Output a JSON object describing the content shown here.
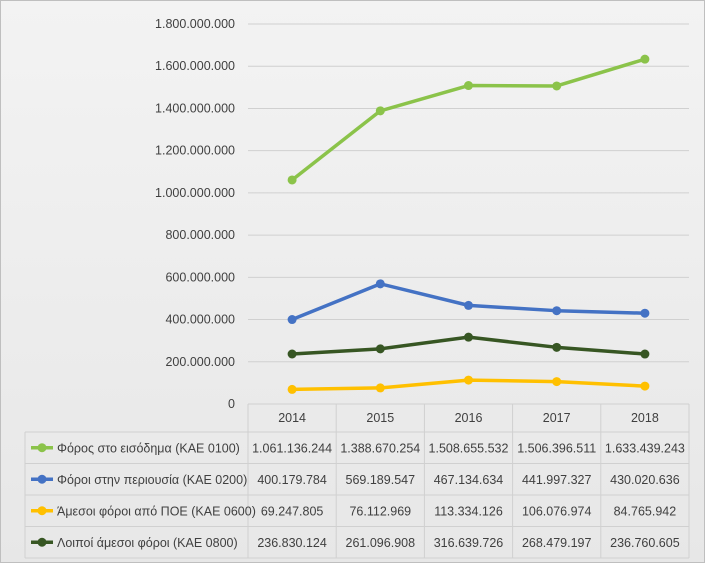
{
  "chart_data": {
    "type": "line",
    "title": "",
    "xlabel": "",
    "ylabel": "",
    "categories": [
      "2014",
      "2015",
      "2016",
      "2017",
      "2018"
    ],
    "ylim": [
      0,
      1800000000
    ],
    "y_ticks": [
      "0",
      "200.000.000",
      "400.000.000",
      "600.000.000",
      "800.000.000",
      "1.000.000.000",
      "1.200.000.000",
      "1.400.000.000",
      "1.600.000.000",
      "1.800.000.000"
    ],
    "grid": true,
    "legend": "data-table-below",
    "series": [
      {
        "name": "Φόρος στο εισόδημα  (ΚΑΕ 0100)",
        "color": "#8bc34a",
        "values": [
          1061136244,
          1388670254,
          1508655532,
          1506396511,
          1633439243
        ],
        "labels": [
          "1.061.136.244",
          "1.388.670.254",
          "1.508.655.532",
          "1.506.396.511",
          "1.633.439.243"
        ]
      },
      {
        "name": "Φόροι στην περιουσία (ΚΑΕ 0200)",
        "color": "#4472c4",
        "values": [
          400179784,
          569189547,
          467134634,
          441997327,
          430020636
        ],
        "labels": [
          "400.179.784",
          "569.189.547",
          "467.134.634",
          "441.997.327",
          "430.020.636"
        ]
      },
      {
        "name": "Άμεσοι φόροι από ΠΟΕ (ΚΑΕ 0600)",
        "color": "#ffc000",
        "values": [
          69247805,
          76112969,
          113334126,
          106076974,
          84765942
        ],
        "labels": [
          "69.247.805",
          "76.112.969",
          "113.334.126",
          "106.076.974",
          "84.765.942"
        ]
      },
      {
        "name": "Λοιποί άμεσοι φόροι (ΚΑΕ 0800)",
        "color": "#375623",
        "values": [
          236830124,
          261096908,
          316639726,
          268479197,
          236760605
        ],
        "labels": [
          "236.830.124",
          "261.096.908",
          "316.639.726",
          "268.479.197",
          "236.760.605"
        ]
      }
    ]
  }
}
